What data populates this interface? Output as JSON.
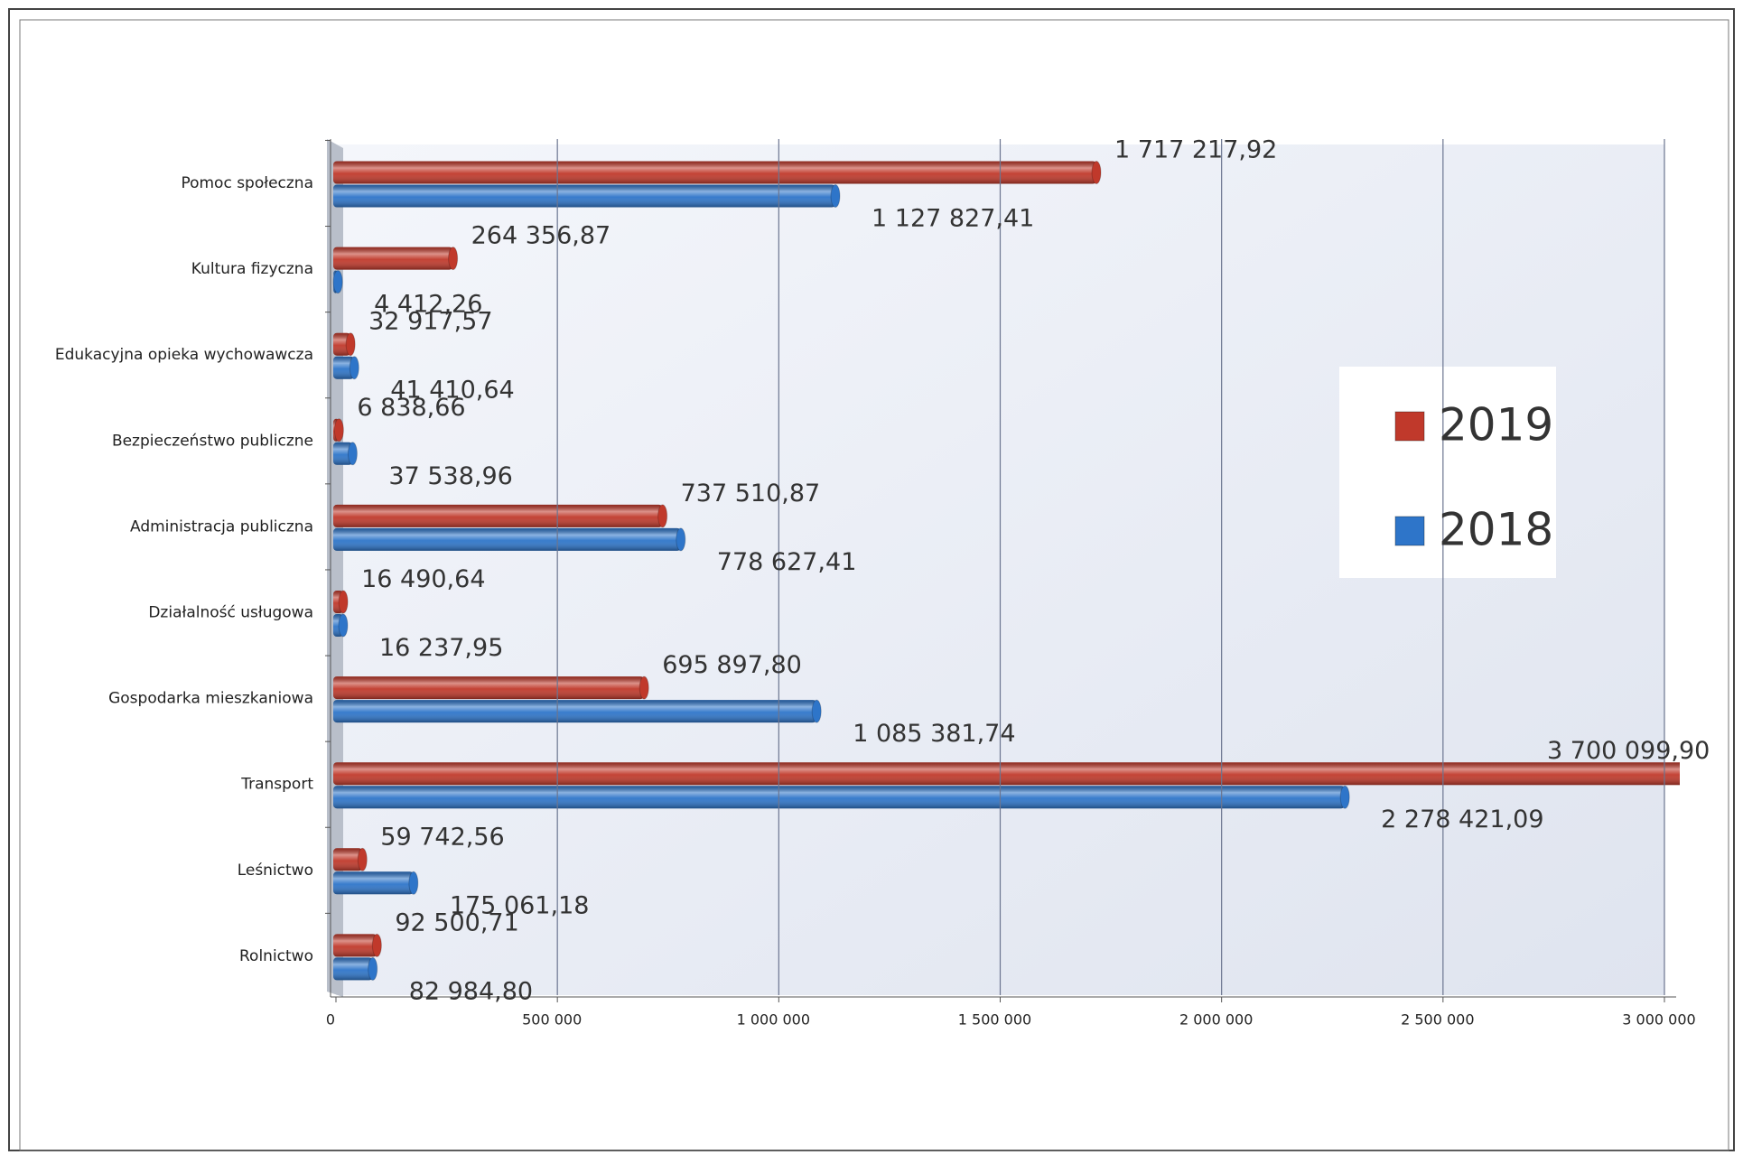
{
  "chart_data": {
    "type": "bar",
    "orientation": "horizontal",
    "categories": [
      "Pomoc społeczna",
      "Kultura fizyczna",
      "Edukacyjna opieka wychowawcza",
      "Bezpieczeństwo publiczne",
      "Administracja publiczna",
      "Działalność usługowa",
      "Gospodarka mieszkaniowa",
      "Transport",
      "Leśnictwo",
      "Rolnictwo"
    ],
    "series": [
      {
        "name": "2019",
        "color": "#c0392b",
        "values": [
          1717217.92,
          264356.87,
          32917.57,
          6838.66,
          737510.87,
          16490.64,
          695897.8,
          3700099.9,
          59742.56,
          92500.71
        ],
        "value_labels": [
          "1 717 217,92",
          "264 356,87",
          "32 917,57",
          "6 838,66",
          "737 510,87",
          "16 490,64",
          "695 897,80",
          "3 700 099,90",
          "59 742,56",
          "92 500,71"
        ]
      },
      {
        "name": "2018",
        "color": "#2e75c9",
        "values": [
          1127827.41,
          4412.26,
          41410.64,
          37538.96,
          778627.41,
          16237.95,
          1085381.74,
          2278421.09,
          175061.18,
          82984.8
        ],
        "value_labels": [
          "1 127 827,41",
          "4 412,26",
          "41 410,64",
          "37 538,96",
          "778 627,41",
          "16 237,95",
          "1 085 381,74",
          "2 278 421,09",
          "175 061,18",
          "82 984,80"
        ]
      }
    ],
    "xlim": [
      0,
      3000000
    ],
    "xticks": [
      0,
      {
        "value": 500000,
        "label": "500 000"
      },
      {
        "value": 1000000,
        "label": "1 000 000"
      },
      {
        "value": 1500000,
        "label": "1 500 000"
      },
      {
        "value": 2000000,
        "label": "2 000 000"
      },
      {
        "value": 2500000,
        "label": "2 500 000"
      },
      {
        "value": 3000000,
        "label": "3 000 000"
      }
    ],
    "grid": true,
    "legend": "right"
  }
}
